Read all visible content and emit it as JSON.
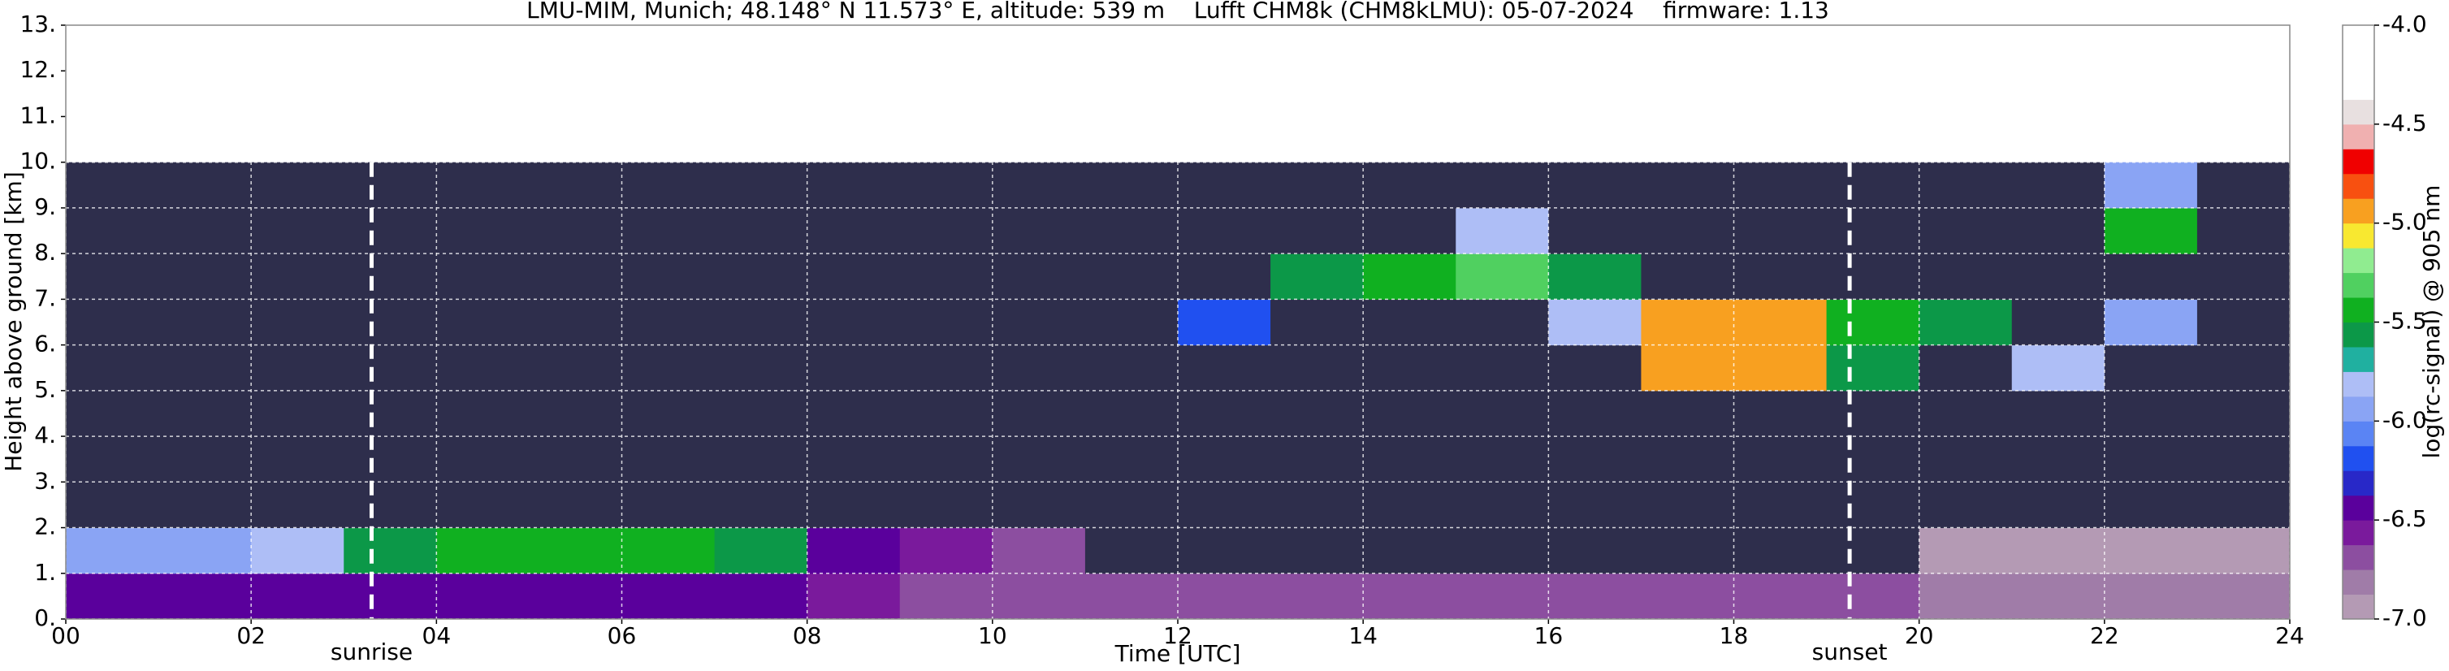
{
  "chart_data": {
    "type": "heatmap",
    "title": "LMU-MIM, Munich; 48.148° N 11.573° E, altitude: 539 m    Lufft CHM8k (CHM8kLMU): 05-07-2024    firmware: 1.13",
    "xlabel": "Time [UTC]",
    "ylabel": "Height above ground [km]",
    "xlim": [
      0,
      24
    ],
    "xticks": [
      {
        "value": 0,
        "label": "00"
      },
      {
        "value": 2,
        "label": "02"
      },
      {
        "value": 4,
        "label": "04"
      },
      {
        "value": 6,
        "label": "06"
      },
      {
        "value": 8,
        "label": "08"
      },
      10,
      12,
      14,
      16,
      18,
      20,
      22,
      24
    ],
    "ylim": [
      0,
      13
    ],
    "yticks": [
      {
        "value": 0,
        "label": "0."
      },
      {
        "value": 1,
        "label": "1."
      },
      {
        "value": 2,
        "label": "2."
      },
      {
        "value": 3,
        "label": "3."
      },
      {
        "value": 4,
        "label": "4."
      },
      {
        "value": 5,
        "label": "5."
      },
      {
        "value": 6,
        "label": "6."
      },
      {
        "value": 7,
        "label": "7."
      },
      {
        "value": 8,
        "label": "8."
      },
      {
        "value": 9,
        "label": "9."
      },
      {
        "value": 10,
        "label": "10."
      },
      {
        "value": 11,
        "label": "11."
      },
      {
        "value": 12,
        "label": "12."
      },
      {
        "value": 13,
        "label": "13."
      }
    ],
    "grid": true,
    "x_edges": [
      0,
      1,
      2,
      3,
      4,
      5,
      6,
      7,
      8,
      9,
      10,
      11,
      12,
      13,
      14,
      15,
      16,
      17,
      18,
      19,
      20,
      21,
      22,
      23,
      24
    ],
    "y_edges": [
      0,
      1,
      2,
      3,
      4,
      5,
      6,
      7,
      8,
      9,
      10
    ],
    "z": [
      [
        -6.4,
        -6.4,
        -6.4,
        -6.4,
        -6.4,
        -6.4,
        -6.4,
        -6.4,
        -6.6,
        -6.7,
        -6.7,
        -6.7,
        -6.7,
        -6.7,
        -6.7,
        -6.7,
        -6.7,
        -6.7,
        -6.7,
        -6.7,
        -6.8,
        -6.8,
        -6.8,
        -6.8
      ],
      [
        -5.9,
        -5.9,
        -5.8,
        -5.6,
        -5.5,
        -5.5,
        -5.5,
        -5.6,
        -6.4,
        -6.6,
        -6.7,
        -7.1,
        -7.1,
        -7.1,
        -7.1,
        -7.1,
        -7.1,
        -7.1,
        -7.1,
        -7.1,
        -6.9,
        -6.9,
        -6.9,
        -6.9
      ],
      [
        -7.1,
        -7.1,
        -7.1,
        -7.1,
        -7.1,
        -7.1,
        -7.1,
        -7.1,
        -7.1,
        -7.1,
        -7.1,
        -7.1,
        -7.1,
        -7.1,
        -7.1,
        -7.1,
        -7.1,
        -7.1,
        -7.1,
        -7.1,
        -7.1,
        -7.1,
        -7.1,
        -7.1
      ],
      [
        -7.1,
        -7.1,
        -7.1,
        -7.1,
        -7.1,
        -7.1,
        -7.1,
        -7.1,
        -7.1,
        -7.1,
        -7.1,
        -7.1,
        -7.1,
        -7.1,
        -7.1,
        -7.1,
        -7.1,
        -7.1,
        -7.1,
        -7.1,
        -7.1,
        -7.1,
        -7.1,
        -7.1
      ],
      [
        -7.1,
        -7.1,
        -7.1,
        -7.1,
        -7.1,
        -7.1,
        -7.1,
        -7.1,
        -7.1,
        -7.1,
        -7.1,
        -7.1,
        -7.1,
        -7.1,
        -7.1,
        -7.1,
        -7.1,
        -7.1,
        -7.1,
        -7.1,
        -7.1,
        -7.1,
        -7.1,
        -7.1
      ],
      [
        -7.1,
        -7.1,
        -7.1,
        -7.1,
        -7.1,
        -7.1,
        -7.1,
        -7.1,
        -7.1,
        -7.1,
        -7.1,
        -7.1,
        -7.1,
        -7.1,
        -7.1,
        -7.1,
        -7.1,
        -4.9,
        -4.9,
        -5.6,
        -7.1,
        -5.8,
        -7.1,
        -7.1
      ],
      [
        -7.1,
        -7.1,
        -7.1,
        -7.1,
        -7.1,
        -7.1,
        -7.1,
        -7.1,
        -7.1,
        -7.1,
        -7.1,
        -7.1,
        -6.2,
        -7.1,
        -7.1,
        -7.1,
        -5.8,
        -4.9,
        -5.0,
        -5.4,
        -5.6,
        -7.1,
        -6.0,
        -7.1
      ],
      [
        -7.1,
        -7.1,
        -7.1,
        -7.1,
        -7.1,
        -7.1,
        -7.1,
        -7.1,
        -7.1,
        -7.1,
        -7.1,
        -7.1,
        -7.1,
        -5.6,
        -5.5,
        -5.3,
        -5.6,
        -7.1,
        -7.1,
        -7.1,
        -7.1,
        -7.1,
        -7.1,
        -7.1
      ],
      [
        -7.1,
        -7.1,
        -7.1,
        -7.1,
        -7.1,
        -7.1,
        -7.1,
        -7.1,
        -7.1,
        -7.1,
        -7.1,
        -7.1,
        -7.1,
        -7.1,
        -7.1,
        -5.8,
        -7.1,
        -7.1,
        -7.1,
        -7.1,
        -7.1,
        -7.1,
        -5.4,
        -7.1
      ],
      [
        -7.1,
        -7.1,
        -7.1,
        -7.1,
        -7.1,
        -7.1,
        -7.1,
        -7.1,
        -7.1,
        -7.1,
        -7.1,
        -7.1,
        -7.1,
        -7.1,
        -7.1,
        -7.1,
        -7.1,
        -7.1,
        -7.1,
        -7.1,
        -7.1,
        -7.1,
        -5.9,
        -7.1
      ]
    ],
    "under_color": "#2e2e4c",
    "colorbar": {
      "label": "log(rc-signal) @ 905 nm",
      "lim": [
        -7,
        -4
      ],
      "ticks": [
        {
          "value": -7,
          "label": "-7.0"
        },
        -6.5,
        {
          "value": -6,
          "label": "-6.0"
        },
        -5.5,
        {
          "value": -5,
          "label": "-5.0"
        },
        -4.5,
        {
          "value": -4,
          "label": "-4.0"
        }
      ],
      "levels": [
        -7,
        -6.875,
        -6.75,
        -6.625,
        -6.5,
        -6.375,
        -6.25,
        -6.125,
        -6,
        -5.875,
        -5.75,
        -5.625,
        -5.5,
        -5.375,
        -5.25,
        -5.125,
        -5,
        -4.875,
        -4.75,
        -4.625,
        -4.5,
        -4.375,
        -4
      ],
      "colors": [
        "#b49ab4",
        "#a07ca8",
        "#8c4ea0",
        "#7a1a9c",
        "#5a009c",
        "#2828c8",
        "#2050f0",
        "#5a84f4",
        "#8aa4f4",
        "#aebef6",
        "#20b0a0",
        "#0c9848",
        "#10b020",
        "#50d060",
        "#90ec90",
        "#f8e830",
        "#f8a020",
        "#f85010",
        "#f00000",
        "#f0b0b0",
        "#e8e0e0",
        "#ffffff"
      ]
    },
    "annotations": [
      {
        "text": "sunrise",
        "x": 3.3
      },
      {
        "text": "sunset",
        "x": 19.25
      }
    ]
  }
}
